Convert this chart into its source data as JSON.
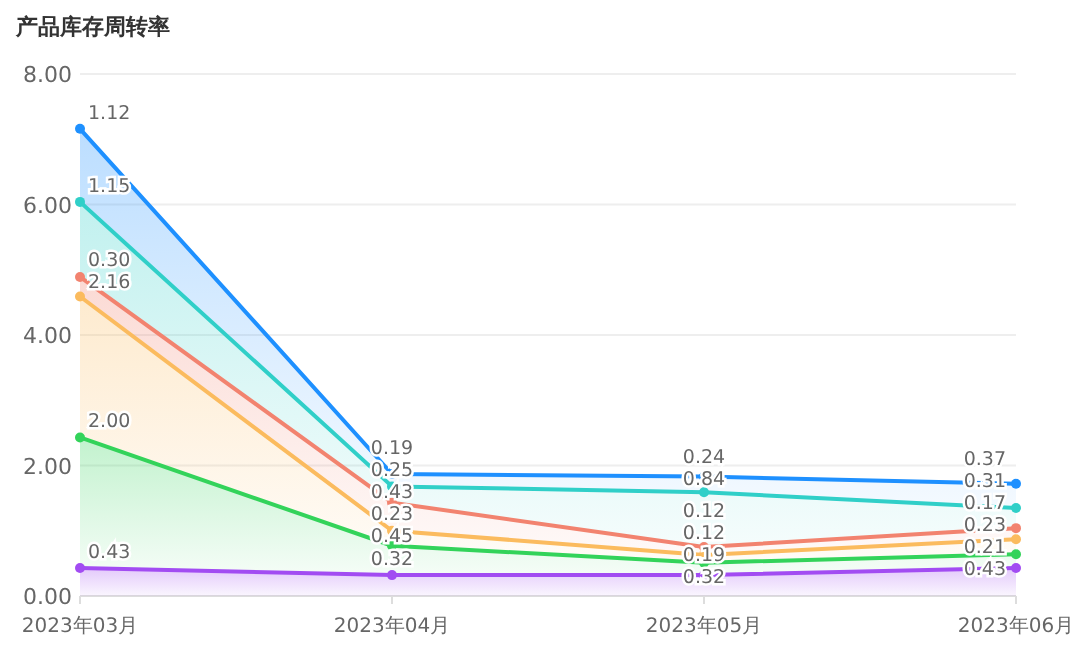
{
  "chart_data": {
    "type": "area",
    "stacked": true,
    "title": "产品库存周转率",
    "categories": [
      "2023年03月",
      "2023年04月",
      "2023年05月",
      "2023年06月"
    ],
    "series": [
      {
        "color": "#a24cf2",
        "values": [
          0.43,
          0.32,
          0.32,
          0.43
        ],
        "value_labels": [
          "0.43",
          "0.32",
          "0.32",
          "0.43"
        ]
      },
      {
        "color": "#33d35a",
        "values": [
          2.0,
          0.45,
          0.19,
          0.21
        ],
        "value_labels": [
          "2.00",
          "0.45",
          "0.19",
          "0.21"
        ]
      },
      {
        "color": "#fbbb5e",
        "values": [
          2.16,
          0.23,
          0.12,
          0.23
        ],
        "value_labels": [
          "2.16",
          "0.23",
          "0.12",
          "0.23"
        ]
      },
      {
        "color": "#f2836f",
        "values": [
          0.3,
          0.43,
          0.12,
          0.17
        ],
        "value_labels": [
          "0.30",
          "0.43",
          "0.12",
          "0.17"
        ]
      },
      {
        "color": "#30cfc8",
        "values": [
          1.15,
          0.25,
          0.84,
          0.31
        ],
        "value_labels": [
          "1.15",
          "0.25",
          "0.84",
          "0.31"
        ]
      },
      {
        "color": "#1e90ff",
        "values": [
          1.12,
          0.19,
          0.24,
          0.37
        ],
        "value_labels": [
          "1.12",
          "0.19",
          "0.24",
          "0.37"
        ]
      }
    ],
    "ylim": [
      0,
      8
    ],
    "yticks": [
      {
        "value": 0,
        "label": "0.00"
      },
      {
        "value": 2,
        "label": "2.00"
      },
      {
        "value": 4,
        "label": "4.00"
      },
      {
        "value": 6,
        "label": "6.00"
      },
      {
        "value": 8,
        "label": "8.00"
      }
    ],
    "grid": "y",
    "marker": "circle",
    "data_labels": true
  }
}
